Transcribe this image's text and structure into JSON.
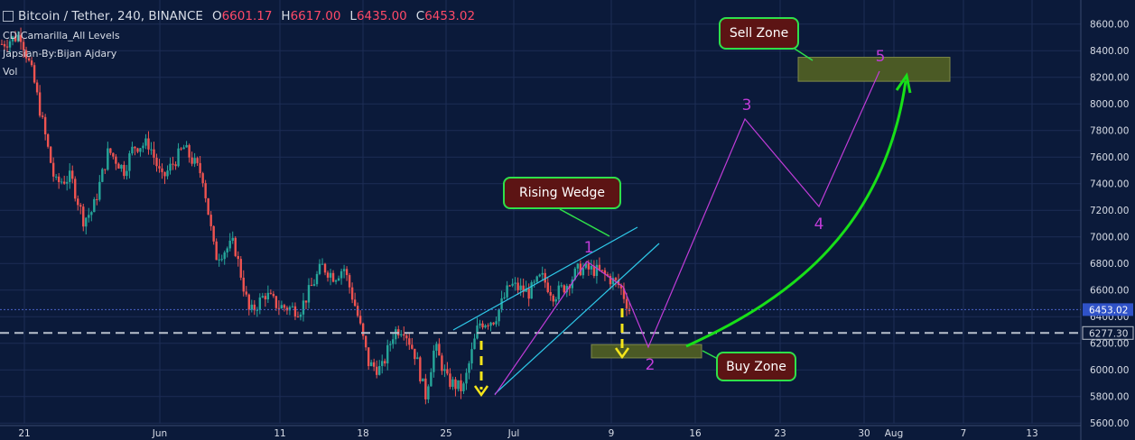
{
  "header": {
    "symbol": "Bitcoin / Tether, 240, BINANCE",
    "open_label": "O",
    "open": "6601.17",
    "high_label": "H",
    "high": "6617.00",
    "low_label": "L",
    "low": "6435.00",
    "close_label": "C",
    "close": "6453.02"
  },
  "indicators": [
    "CD|Camarilla_All Levels",
    "Japsian-By:Bijan Ajdary",
    "Vol"
  ],
  "annotations": {
    "rising_wedge": "Rising Wedge",
    "sell_zone": "Sell Zone",
    "buy_zone": "Buy Zone",
    "wave_labels": [
      "1",
      "2",
      "3",
      "4",
      "5"
    ]
  },
  "price_tags": {
    "last": "6453.02",
    "level": "6277.30"
  },
  "colors": {
    "background": "#0b1a3a",
    "up_candle": "#26a69a",
    "down_candle": "#ef5350",
    "wedge": "#2ec8e8",
    "waves": "#c03cd8",
    "projection_arrow": "#18e018",
    "zone_fill": "#4b5a25",
    "callout_fill": "#5c1414",
    "callout_border": "#2fe04a",
    "breakdown_arrows": "#f5e51a"
  },
  "chart_data": {
    "type": "candlestick",
    "symbol": "Bitcoin / Tether",
    "timeframe": "240",
    "exchange": "BINANCE",
    "x_ticks": [
      "21",
      "Jun",
      "11",
      "18",
      "25",
      "Jul",
      "9",
      "16",
      "23",
      "30",
      "Aug",
      "7",
      "13"
    ],
    "y_ticks": [
      "5600.00",
      "5800.00",
      "6000.00",
      "6200.00",
      "6400.00",
      "6600.00",
      "6800.00",
      "7000.00",
      "7200.00",
      "7400.00",
      "7600.00",
      "7800.00",
      "8000.00",
      "8200.00",
      "8400.00",
      "8600.00"
    ],
    "ylim": [
      5600,
      8680
    ],
    "grid": true,
    "price_path": [
      {
        "x": 0,
        "p": 8450
      },
      {
        "x": 0.03,
        "p": 8520
      },
      {
        "x": 0.05,
        "p": 8200
      },
      {
        "x": 0.085,
        "p": 7400
      },
      {
        "x": 0.11,
        "p": 7450
      },
      {
        "x": 0.13,
        "p": 7130
      },
      {
        "x": 0.145,
        "p": 7200
      },
      {
        "x": 0.17,
        "p": 7650
      },
      {
        "x": 0.195,
        "p": 7500
      },
      {
        "x": 0.21,
        "p": 7680
      },
      {
        "x": 0.235,
        "p": 7700
      },
      {
        "x": 0.255,
        "p": 7430
      },
      {
        "x": 0.29,
        "p": 7670
      },
      {
        "x": 0.32,
        "p": 7460
      },
      {
        "x": 0.34,
        "p": 6850
      },
      {
        "x": 0.37,
        "p": 6950
      },
      {
        "x": 0.395,
        "p": 6420
      },
      {
        "x": 0.42,
        "p": 6570
      },
      {
        "x": 0.44,
        "p": 6480
      },
      {
        "x": 0.475,
        "p": 6450
      },
      {
        "x": 0.51,
        "p": 6780
      },
      {
        "x": 0.53,
        "p": 6700
      },
      {
        "x": 0.545,
        "p": 6770
      },
      {
        "x": 0.565,
        "p": 6450
      },
      {
        "x": 0.585,
        "p": 6040
      },
      {
        "x": 0.605,
        "p": 6000
      },
      {
        "x": 0.625,
        "p": 6290
      },
      {
        "x": 0.64,
        "p": 6320
      },
      {
        "x": 0.66,
        "p": 6100
      },
      {
        "x": 0.675,
        "p": 5800
      },
      {
        "x": 0.69,
        "p": 6180
      },
      {
        "x": 0.71,
        "p": 5920
      },
      {
        "x": 0.735,
        "p": 5850
      },
      {
        "x": 0.76,
        "p": 6350
      },
      {
        "x": 0.785,
        "p": 6380
      },
      {
        "x": 0.81,
        "p": 6640
      },
      {
        "x": 0.84,
        "p": 6580
      },
      {
        "x": 0.86,
        "p": 6700
      },
      {
        "x": 0.88,
        "p": 6560
      },
      {
        "x": 0.9,
        "p": 6640
      },
      {
        "x": 0.92,
        "p": 6760
      },
      {
        "x": 0.945,
        "p": 6750
      },
      {
        "x": 0.965,
        "p": 6700
      },
      {
        "x": 0.985,
        "p": 6630
      },
      {
        "x": 1.0,
        "p": 6453
      }
    ],
    "ohlc_last": {
      "open": 6601.17,
      "high": 6617.0,
      "low": 6435.0,
      "close": 6453.02
    },
    "level_line": 6277.3,
    "elliott_waves": [
      {
        "label": "1",
        "price": 6800
      },
      {
        "label": "2",
        "price": 6150
      },
      {
        "label": "3",
        "price": 7880
      },
      {
        "label": "4",
        "price": 7200
      },
      {
        "label": "5",
        "price": 8250
      }
    ],
    "zones": [
      {
        "name": "Sell Zone",
        "from": 8170,
        "to": 8350
      },
      {
        "name": "Buy Zone",
        "from": 6090,
        "to": 6190
      }
    ],
    "pattern": "Rising Wedge"
  }
}
